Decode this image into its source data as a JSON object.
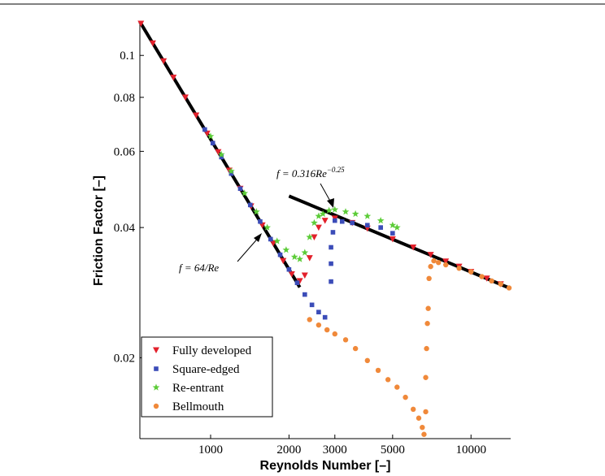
{
  "chart_data": {
    "type": "scatter",
    "xlabel": "Reynolds Number [–]",
    "ylabel": "Friction Factor [–]",
    "xscale": "log",
    "yscale": "log",
    "xlim": [
      535,
      14200
    ],
    "ylim": [
      0.013,
      0.119
    ],
    "xticks": [
      1000,
      2000,
      3000,
      5000,
      10000
    ],
    "yticks": [
      0.02,
      0.04,
      0.06,
      0.08,
      0.1
    ],
    "legend": "lower left",
    "series": [
      {
        "name": "Fully developed",
        "marker": "triangle-down",
        "color": "#e3202b",
        "x": [
          540,
          600,
          660,
          720,
          800,
          880,
          970,
          1070,
          1180,
          1300,
          1430,
          1580,
          1740,
          1900,
          2050,
          2200,
          2300,
          2400,
          2500,
          2600,
          2750,
          3000,
          3500,
          4000,
          5000,
          6000,
          7000,
          8000,
          9000,
          10000,
          11500,
          13000
        ],
        "values": [
          0.1185,
          0.1067,
          0.097,
          0.0889,
          0.08,
          0.0727,
          0.066,
          0.0598,
          0.0542,
          0.0492,
          0.0448,
          0.0405,
          0.0368,
          0.0335,
          0.0312,
          0.0301,
          0.031,
          0.034,
          0.038,
          0.04,
          0.0415,
          0.042,
          0.041,
          0.0398,
          0.0376,
          0.036,
          0.0346,
          0.0334,
          0.0325,
          0.0316,
          0.0305,
          0.0296
        ]
      },
      {
        "name": "Square-edged",
        "marker": "square",
        "color": "#3b4cb8",
        "x": [
          950,
          1020,
          1100,
          1200,
          1300,
          1420,
          1550,
          1700,
          1850,
          2000,
          2150,
          2300,
          2450,
          2600,
          2750,
          2900,
          2900,
          2900,
          2950,
          3000,
          3200,
          3500,
          4000,
          4500,
          5000
        ],
        "values": [
          0.0674,
          0.0627,
          0.0582,
          0.0533,
          0.0492,
          0.0451,
          0.0413,
          0.0376,
          0.0346,
          0.032,
          0.0298,
          0.028,
          0.0265,
          0.0255,
          0.0248,
          0.03,
          0.033,
          0.036,
          0.039,
          0.0415,
          0.0413,
          0.041,
          0.0405,
          0.04,
          0.0388
        ]
      },
      {
        "name": "Re-entrant",
        "marker": "star",
        "color": "#5ccc38",
        "x": [
          1000,
          1100,
          1200,
          1350,
          1500,
          1650,
          1800,
          1950,
          2100,
          2200,
          2300,
          2400,
          2500,
          2600,
          2700,
          2850,
          3000,
          3300,
          3600,
          4000,
          4500,
          5000,
          5200
        ],
        "values": [
          0.065,
          0.059,
          0.054,
          0.048,
          0.0435,
          0.04,
          0.0372,
          0.0355,
          0.0342,
          0.0338,
          0.035,
          0.038,
          0.041,
          0.0425,
          0.043,
          0.0438,
          0.044,
          0.0435,
          0.043,
          0.0425,
          0.0415,
          0.0405,
          0.04
        ]
      },
      {
        "name": "Bellmouth",
        "marker": "circle",
        "color": "#f0893a",
        "x": [
          2400,
          2600,
          2800,
          3000,
          3300,
          3600,
          4000,
          4400,
          4800,
          5200,
          5600,
          6000,
          6300,
          6500,
          6600,
          6700,
          6700,
          6750,
          6800,
          6850,
          6900,
          7000,
          7200,
          7500,
          8000,
          9000,
          10000,
          11000,
          12000,
          13000,
          14000
        ],
        "values": [
          0.0245,
          0.0238,
          0.0232,
          0.0227,
          0.022,
          0.021,
          0.0197,
          0.0187,
          0.0178,
          0.0171,
          0.0162,
          0.0152,
          0.0145,
          0.0138,
          0.0133,
          0.015,
          0.018,
          0.021,
          0.024,
          0.026,
          0.0305,
          0.0325,
          0.0335,
          0.0332,
          0.0328,
          0.0322,
          0.0316,
          0.0308,
          0.0301,
          0.0296,
          0.029
        ]
      }
    ],
    "fits": [
      {
        "label": "f = 64/Re",
        "x": [
          535,
          2200
        ],
        "values": [
          0.1196,
          0.0291
        ]
      },
      {
        "label": "f = 0.316Re",
        "superscript": "−0.25",
        "x": [
          2000,
          14200
        ],
        "values": [
          0.0473,
          0.0289
        ]
      }
    ]
  }
}
